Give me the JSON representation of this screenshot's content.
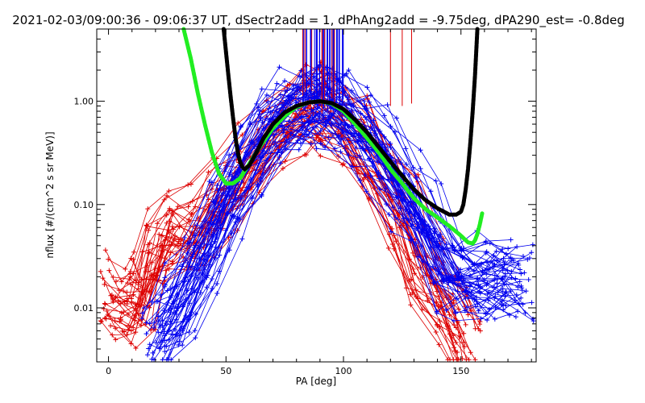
{
  "chart_data": {
    "type": "scatter",
    "title": "2021-02-03/09:00:36 - 09:06:37 UT, dSectr2add = 1, dPhAng2add = -9.75deg, dPA290_est=  -0.8deg",
    "xlabel": "PA [deg]",
    "ylabel": "nflux [#/(cm^2 s sr MeV)]",
    "xlim": [
      -5,
      182
    ],
    "ylim": [
      0.003,
      5.0
    ],
    "yscale": "log",
    "xticks": [
      0,
      50,
      100,
      150
    ],
    "xtick_labels": [
      "0",
      "50",
      "100",
      "150"
    ],
    "yticks": [
      0.01,
      0.1,
      1.0
    ],
    "ytick_labels": [
      "0.01",
      "0.10",
      "1.00"
    ],
    "grid": false,
    "legend": "none",
    "colors": {
      "red_traces": "#dd0000",
      "blue_traces": "#0000ee",
      "green_fit": "#22ee22",
      "black_fit": "#000000",
      "background": "#ffffff"
    },
    "series": [
      {
        "color": "red",
        "marker": "plus",
        "note_points": "representative subset",
        "x": [
          3,
          10,
          16,
          22,
          30,
          40,
          50,
          60,
          70,
          80,
          88,
          95,
          105,
          115,
          125,
          135,
          145,
          152
        ],
        "y": [
          0.015,
          0.011,
          0.013,
          0.044,
          0.05,
          0.06,
          0.13,
          0.22,
          0.45,
          0.75,
          0.95,
          0.85,
          0.5,
          0.25,
          0.1,
          0.025,
          0.012,
          0.005
        ]
      },
      {
        "color": "blue",
        "marker": "plus",
        "note_points": "representative subset",
        "x": [
          22,
          30,
          40,
          50,
          60,
          70,
          80,
          88,
          95,
          105,
          115,
          125,
          135,
          145,
          155,
          165,
          175
        ],
        "y": [
          0.006,
          0.01,
          0.03,
          0.1,
          0.3,
          0.6,
          0.85,
          0.95,
          0.9,
          0.6,
          0.35,
          0.15,
          0.06,
          0.025,
          0.018,
          0.02,
          0.018
        ]
      },
      {
        "color": "green",
        "marker": "dot-curve",
        "x": [
          32,
          35,
          38,
          41,
          44,
          47,
          50,
          53,
          56,
          60,
          65,
          70,
          75,
          80,
          85,
          90,
          95,
          100,
          105,
          110,
          115,
          120,
          125,
          130,
          135,
          140,
          145,
          150,
          153,
          155,
          156,
          157,
          158,
          159
        ],
        "y": [
          5.0,
          2.6,
          1.2,
          0.6,
          0.32,
          0.2,
          0.16,
          0.16,
          0.18,
          0.25,
          0.38,
          0.55,
          0.72,
          0.88,
          0.97,
          1.0,
          0.95,
          0.8,
          0.6,
          0.44,
          0.32,
          0.22,
          0.16,
          0.115,
          0.09,
          0.075,
          0.062,
          0.05,
          0.043,
          0.042,
          0.045,
          0.052,
          0.064,
          0.082
        ]
      },
      {
        "color": "black",
        "marker": "dot-curve",
        "x": [
          49,
          50,
          51,
          52,
          53,
          54,
          55,
          56,
          57,
          58,
          60,
          63,
          66,
          70,
          75,
          80,
          85,
          90,
          95,
          100,
          105,
          110,
          115,
          120,
          125,
          130,
          135,
          140,
          145,
          148,
          150,
          151,
          152,
          153,
          154,
          155,
          156,
          157
        ],
        "y": [
          5.0,
          3.0,
          1.8,
          1.1,
          0.7,
          0.45,
          0.32,
          0.26,
          0.23,
          0.22,
          0.24,
          0.32,
          0.44,
          0.6,
          0.78,
          0.9,
          0.97,
          1.0,
          0.96,
          0.84,
          0.66,
          0.5,
          0.36,
          0.26,
          0.19,
          0.14,
          0.11,
          0.092,
          0.08,
          0.08,
          0.085,
          0.1,
          0.14,
          0.22,
          0.4,
          0.8,
          1.8,
          5.0
        ]
      }
    ]
  }
}
